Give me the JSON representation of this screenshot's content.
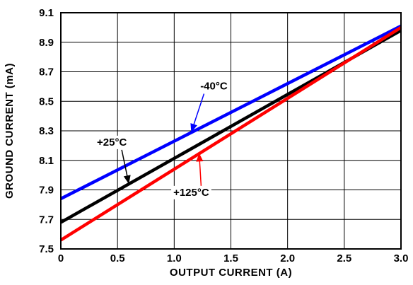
{
  "chart_data": {
    "type": "line",
    "title": "",
    "xlabel": "OUTPUT CURRENT (A)",
    "ylabel": "GROUND CURRENT (mA)",
    "xlim": [
      0,
      3.0
    ],
    "ylim": [
      7.5,
      9.1
    ],
    "x_ticks": [
      "0",
      "0.5",
      "1.0",
      "1.5",
      "2.0",
      "2.5",
      "3.0"
    ],
    "y_ticks": [
      "7.5",
      "7.7",
      "7.9",
      "8.1",
      "8.3",
      "8.5",
      "8.7",
      "8.9",
      "9.1"
    ],
    "grid": true,
    "series": [
      {
        "name": "-40°C",
        "color": "#0000ff",
        "x": [
          0,
          3.0
        ],
        "y": [
          7.84,
          9.01
        ]
      },
      {
        "name": "+25°C",
        "color": "#000000",
        "x": [
          0,
          3.0
        ],
        "y": [
          7.68,
          8.98
        ]
      },
      {
        "name": "+125°C",
        "color": "#ff0000",
        "x": [
          0,
          3.0
        ],
        "y": [
          7.56,
          9.0
        ]
      }
    ],
    "annotations": [
      {
        "text": "-40°C",
        "series": "-40°C",
        "arrow_color": "#0000ff",
        "point_x": 1.15,
        "point_y": 8.29,
        "label_x": 1.35,
        "label_y": 8.58
      },
      {
        "text": "+25°C",
        "series": "+25°C",
        "arrow_color": "#000000",
        "point_x": 0.6,
        "point_y": 7.94,
        "label_x": 0.45,
        "label_y": 8.2
      },
      {
        "text": "+125°C",
        "series": "+125°C",
        "arrow_color": "#ff0000",
        "point_x": 1.22,
        "point_y": 8.15,
        "label_x": 1.15,
        "label_y": 7.86
      }
    ]
  }
}
